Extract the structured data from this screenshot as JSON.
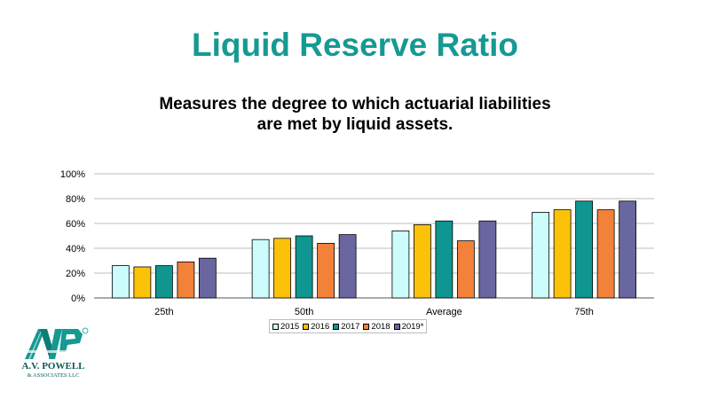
{
  "page": {
    "title": "Liquid Reserve Ratio",
    "subtitle_lines": [
      "Measures the degree to which actuarial liabilities",
      "are met by liquid assets."
    ]
  },
  "logo": {
    "icon": "avp-logo-icon",
    "company_line1": "A.V. POWELL",
    "company_line2": "& ASSOCIATES LLC"
  },
  "colors": {
    "title": "#159a92",
    "series": [
      "#ccfcfc",
      "#fcc20a",
      "#0f9690",
      "#f2813a",
      "#6a66a0"
    ]
  },
  "chart_data": {
    "type": "bar",
    "categories": [
      "25th",
      "50th",
      "Average",
      "75th"
    ],
    "series": [
      {
        "name": "2015",
        "values": [
          26,
          47,
          54,
          69
        ]
      },
      {
        "name": "2016",
        "values": [
          25,
          48,
          59,
          71
        ]
      },
      {
        "name": "2017",
        "values": [
          26,
          50,
          62,
          78
        ]
      },
      {
        "name": "2018",
        "values": [
          29,
          44,
          46,
          71
        ]
      },
      {
        "name": "2019*",
        "values": [
          32,
          51,
          62,
          78
        ]
      }
    ],
    "ylim": [
      0,
      100
    ],
    "yticks": [
      "0%",
      "20%",
      "40%",
      "60%",
      "80%",
      "100%"
    ],
    "ytick_values": [
      0,
      20,
      40,
      60,
      80,
      100
    ],
    "grid": true,
    "legend_position": "bottom-center"
  }
}
